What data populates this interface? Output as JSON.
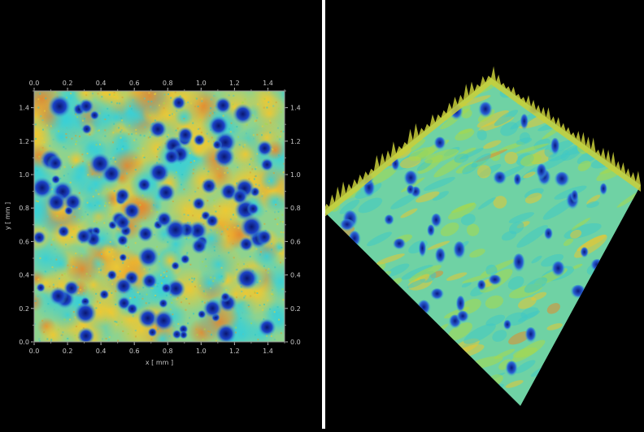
{
  "left_map": {
    "x_axis": {
      "label": "x [ mm ]",
      "ticks": [
        "0.0",
        "0.2",
        "0.4",
        "0.6",
        "0.8",
        "1.0",
        "1.2",
        "1.4"
      ],
      "range": [
        0,
        1.5
      ]
    },
    "y_axis": {
      "label": "y [ mm ]",
      "ticks": [
        "0.0",
        "0.2",
        "0.4",
        "0.6",
        "0.8",
        "1.0",
        "1.2",
        "1.4"
      ],
      "range": [
        0,
        1.5
      ]
    }
  },
  "colors": {
    "background": "#000000",
    "divider": "#ffffff",
    "surface_base": "#7fd3a8",
    "surface_cyan": "#3fd0c8",
    "surface_yellow": "#e3d83a",
    "surface_orange": "#e59a2e",
    "pit_blue": "#1b3fc0",
    "pit_dark": "#0b1a7a"
  }
}
